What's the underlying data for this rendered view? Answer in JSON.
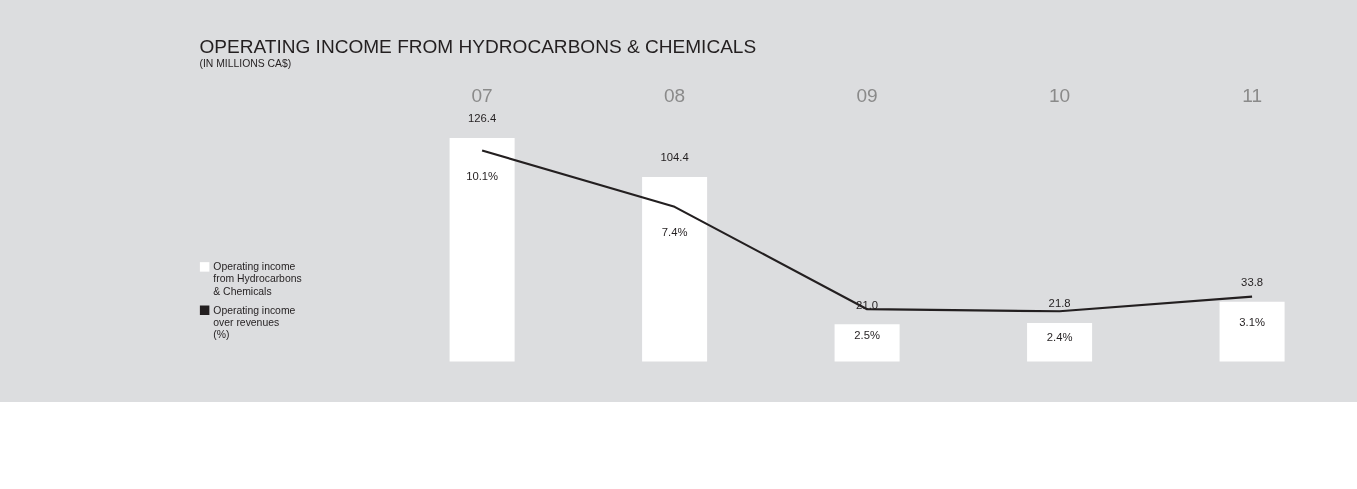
{
  "chart_data": {
    "type": "bar",
    "title": "OPERATING INCOME FROM HYDROCARBONS & CHEMICALS",
    "subtitle": "(IN MILLIONS CA$)",
    "categories": [
      "07",
      "08",
      "09",
      "10",
      "11"
    ],
    "series": [
      {
        "name": "Operating income from Hydrocarbons & Chemicals",
        "color": "#ffffff",
        "values": [
          126.4,
          104.4,
          21.0,
          21.8,
          33.8
        ],
        "value_labels": [
          "126.4",
          "104.4",
          "21.0",
          "21.8",
          "33.8"
        ]
      },
      {
        "name": "Operating income over revenues (%)",
        "type": "line",
        "axis": "y2",
        "color": "#231f20",
        "values": [
          10.1,
          7.4,
          2.5,
          2.4,
          3.1
        ],
        "value_labels": [
          "10.1%",
          "7.4%",
          "2.5%",
          "2.4%",
          "3.1%"
        ]
      }
    ],
    "legend": "bottom left"
  }
}
